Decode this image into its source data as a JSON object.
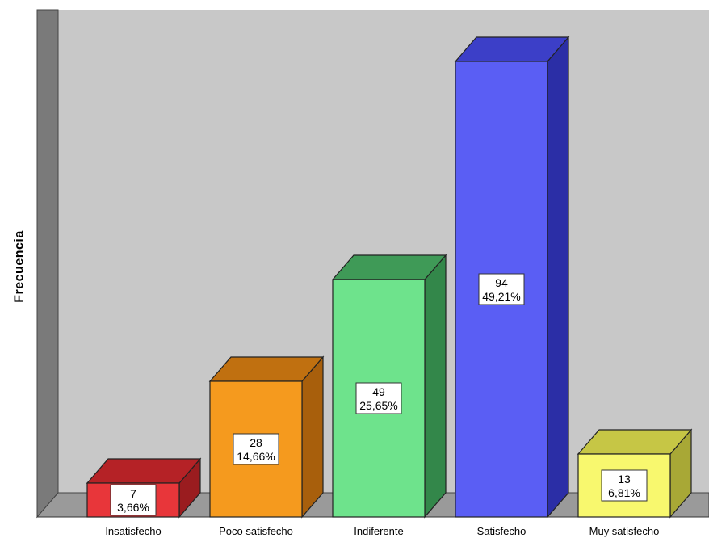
{
  "chart_data": {
    "type": "bar",
    "categories": [
      "Insatisfecho",
      "Poco satisfecho",
      "Indiferente",
      "Satisfecho",
      "Muy satisfecho"
    ],
    "values": [
      7,
      28,
      49,
      94,
      13
    ],
    "percent_labels": [
      "3,66%",
      "14,66%",
      "25,65%",
      "49,21%",
      "6,81%"
    ],
    "ylabel": "Frecuencia",
    "ylim": [
      0,
      100
    ],
    "grid": false,
    "style": "3d",
    "colors": {
      "front": [
        "#e8363a",
        "#f59a1e",
        "#6ee38c",
        "#5a5ef4",
        "#f8f86e"
      ],
      "top": [
        "#b52226",
        "#c07010",
        "#3f9a57",
        "#3c3fc8",
        "#c6c645"
      ],
      "side": [
        "#9a1c1f",
        "#a85f0c",
        "#33874a",
        "#2b2ea6",
        "#a8a836"
      ],
      "plot_background": "#c8c8c8",
      "wall": "#7a7a7a"
    }
  }
}
